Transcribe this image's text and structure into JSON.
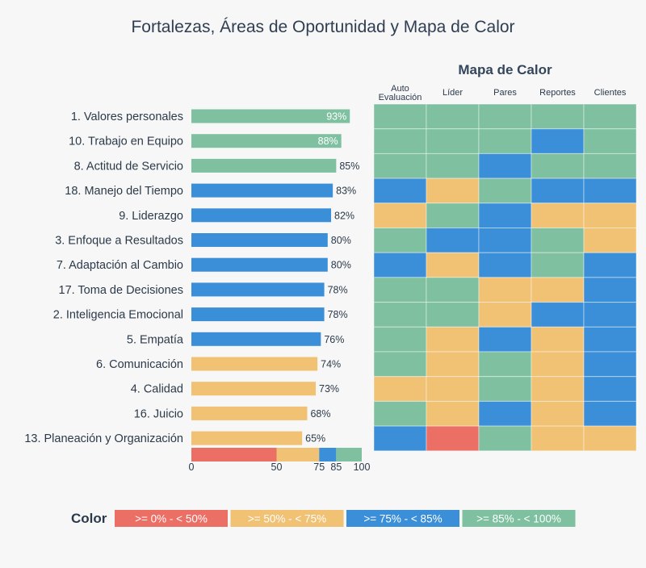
{
  "title": "Fortalezas, Áreas de Oportunidad y Mapa de Calor",
  "heatmap_title": "Mapa de Calor",
  "legend_label": "Color",
  "colors": {
    "red": "#ec6f66",
    "yellow": "#f1c174",
    "blue": "#3b8fd8",
    "green": "#7ec09f"
  },
  "chart_data": [
    {
      "type": "bar",
      "orientation": "horizontal",
      "categories": [
        "1. Valores personales",
        "10. Trabajo en Equipo",
        "8. Actitud de Servicio",
        "18. Manejo del Tiempo",
        "9. Liderazgo",
        "3. Enfoque a Resultados",
        "7. Adaptación al Cambio",
        "17. Toma de Decisiones",
        "2. Inteligencia Emocional",
        "5. Empatía",
        "6. Comunicación",
        "4. Calidad",
        "16. Juicio",
        "13. Planeación y Organización"
      ],
      "values": [
        93,
        88,
        85,
        83,
        82,
        80,
        80,
        78,
        78,
        76,
        74,
        73,
        68,
        65
      ],
      "value_labels": [
        "93%",
        "88%",
        "85%",
        "83%",
        "82%",
        "80%",
        "80%",
        "78%",
        "78%",
        "76%",
        "74%",
        "73%",
        "68%",
        "65%"
      ],
      "xlim": [
        0,
        100
      ],
      "scale_ticks": [
        0,
        50,
        75,
        85,
        100
      ],
      "scale_tick_labels": [
        "0",
        "50",
        "75",
        "85",
        "100"
      ],
      "scale_bands": [
        {
          "from": 0,
          "to": 50,
          "color": "red"
        },
        {
          "from": 50,
          "to": 75,
          "color": "yellow"
        },
        {
          "from": 75,
          "to": 85,
          "color": "blue"
        },
        {
          "from": 85,
          "to": 100,
          "color": "green"
        }
      ]
    },
    {
      "type": "heatmap",
      "title": "Mapa de Calor",
      "columns": [
        [
          "Auto",
          "Evaluación"
        ],
        [
          "Líder"
        ],
        [
          "Pares"
        ],
        [
          "Reportes"
        ],
        [
          "Clientes"
        ]
      ],
      "rows": [
        "1. Valores personales",
        "10. Trabajo en Equipo",
        "8. Actitud de Servicio",
        "18. Manejo del Tiempo",
        "9. Liderazgo",
        "3. Enfoque a Resultados",
        "7. Adaptación al Cambio",
        "17. Toma de Decisiones",
        "2. Inteligencia Emocional",
        "5. Empatía",
        "6. Comunicación",
        "4. Calidad",
        "16. Juicio",
        "13. Planeación y Organización"
      ],
      "cells": [
        [
          "green",
          "green",
          "green",
          "green",
          "green"
        ],
        [
          "green",
          "green",
          "green",
          "blue",
          "green"
        ],
        [
          "green",
          "green",
          "blue",
          "green",
          "green"
        ],
        [
          "blue",
          "yellow",
          "green",
          "blue",
          "blue"
        ],
        [
          "yellow",
          "green",
          "blue",
          "yellow",
          "yellow"
        ],
        [
          "green",
          "blue",
          "blue",
          "green",
          "yellow"
        ],
        [
          "blue",
          "yellow",
          "blue",
          "green",
          "blue"
        ],
        [
          "green",
          "green",
          "yellow",
          "yellow",
          "blue"
        ],
        [
          "green",
          "green",
          "yellow",
          "blue",
          "blue"
        ],
        [
          "green",
          "yellow",
          "blue",
          "yellow",
          "blue"
        ],
        [
          "green",
          "yellow",
          "green",
          "yellow",
          "blue"
        ],
        [
          "yellow",
          "yellow",
          "green",
          "yellow",
          "blue"
        ],
        [
          "green",
          "yellow",
          "blue",
          "yellow",
          "blue"
        ],
        [
          "blue",
          "red",
          "green",
          "yellow",
          "yellow"
        ]
      ]
    }
  ],
  "legend": [
    {
      "label": ">= 0% - < 50%",
      "color": "red"
    },
    {
      "label": ">= 50% - < 75%",
      "color": "yellow"
    },
    {
      "label": ">= 75% - < 85%",
      "color": "blue"
    },
    {
      "label": ">= 85% - < 100%",
      "color": "green"
    }
  ]
}
